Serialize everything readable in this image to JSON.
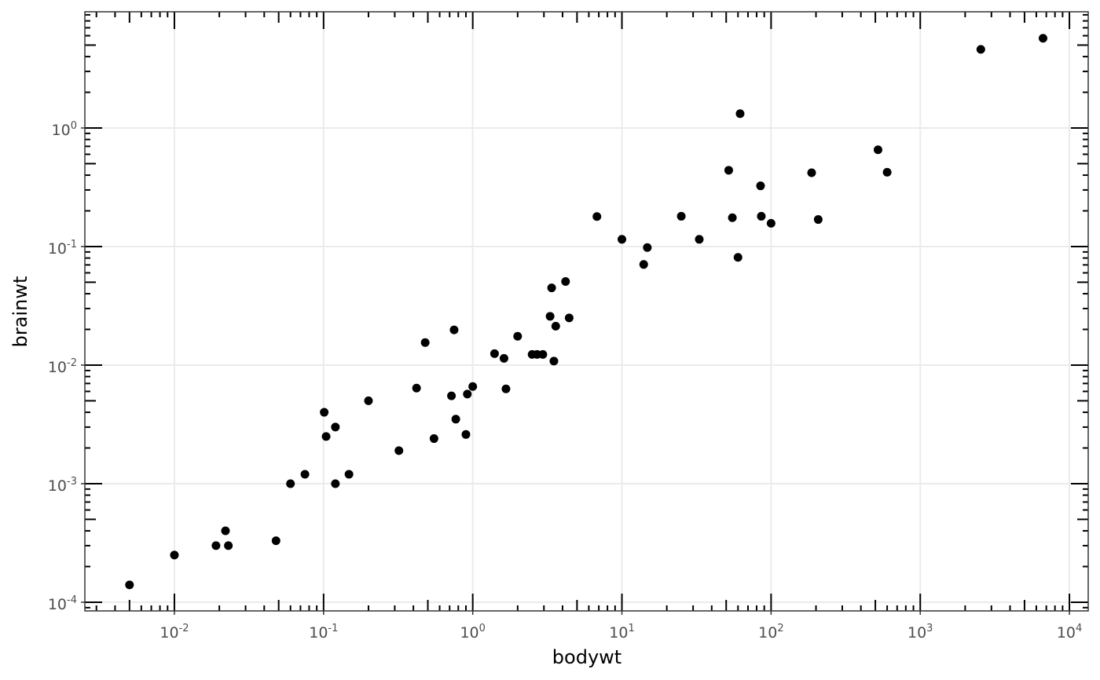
{
  "chart_data": {
    "type": "scatter",
    "x_label": "bodywt",
    "y_label": "brainwt",
    "x": [
      0.005,
      0.01,
      0.019,
      0.022,
      0.023,
      0.048,
      0.06,
      0.075,
      0.101,
      0.104,
      0.12,
      0.12,
      0.148,
      0.2,
      0.32,
      0.42,
      0.48,
      0.55,
      0.72,
      0.75,
      0.77,
      0.9,
      0.92,
      1.0,
      1.4,
      1.62,
      1.67,
      2.0,
      2.5,
      2.7,
      2.95,
      3.3,
      3.38,
      3.5,
      3.6,
      4.19,
      4.43,
      6.8,
      10,
      14,
      14.8,
      25,
      33,
      52,
      55,
      60,
      62,
      85,
      86,
      100,
      187,
      207,
      521,
      600,
      2547,
      6654
    ],
    "values": [
      0.00014,
      0.00025,
      0.0003,
      0.0004,
      0.0003,
      0.00033,
      0.001,
      0.0012,
      0.004,
      0.0025,
      0.001,
      0.003,
      0.0012,
      0.005,
      0.0019,
      0.0064,
      0.0155,
      0.0024,
      0.0055,
      0.0198,
      0.0035,
      0.0026,
      0.0057,
      0.0066,
      0.0125,
      0.0114,
      0.0063,
      0.0175,
      0.0123,
      0.0123,
      0.0123,
      0.0258,
      0.0448,
      0.0108,
      0.0213,
      0.0507,
      0.025,
      0.179,
      0.115,
      0.0706,
      0.098,
      0.18,
      0.115,
      0.44,
      0.175,
      0.081,
      1.32,
      0.325,
      0.18,
      0.157,
      0.419,
      0.169,
      0.655,
      0.423,
      4.6,
      5.712
    ],
    "color": "#000000",
    "xscale": "log",
    "yscale": "log",
    "xlim": [
      0.00251,
      13366
    ],
    "ylim": [
      8.45e-05,
      9.55
    ],
    "xticks": [
      {
        "value": 0.01,
        "label": "10^-2"
      },
      {
        "value": 0.1,
        "label": "10^-1"
      },
      {
        "value": 1,
        "label": "10^0"
      },
      {
        "value": 10,
        "label": "10^1"
      },
      {
        "value": 100,
        "label": "10^2"
      },
      {
        "value": 1000,
        "label": "10^3"
      },
      {
        "value": 10000,
        "label": "10^4"
      }
    ],
    "yticks": [
      {
        "value": 0.0001,
        "label": "10^-4"
      },
      {
        "value": 0.001,
        "label": "10^-3"
      },
      {
        "value": 0.01,
        "label": "10^-2"
      },
      {
        "value": 0.1,
        "label": "10^-1"
      },
      {
        "value": 1,
        "label": "10^0"
      }
    ],
    "grid": true,
    "logticks": true
  }
}
